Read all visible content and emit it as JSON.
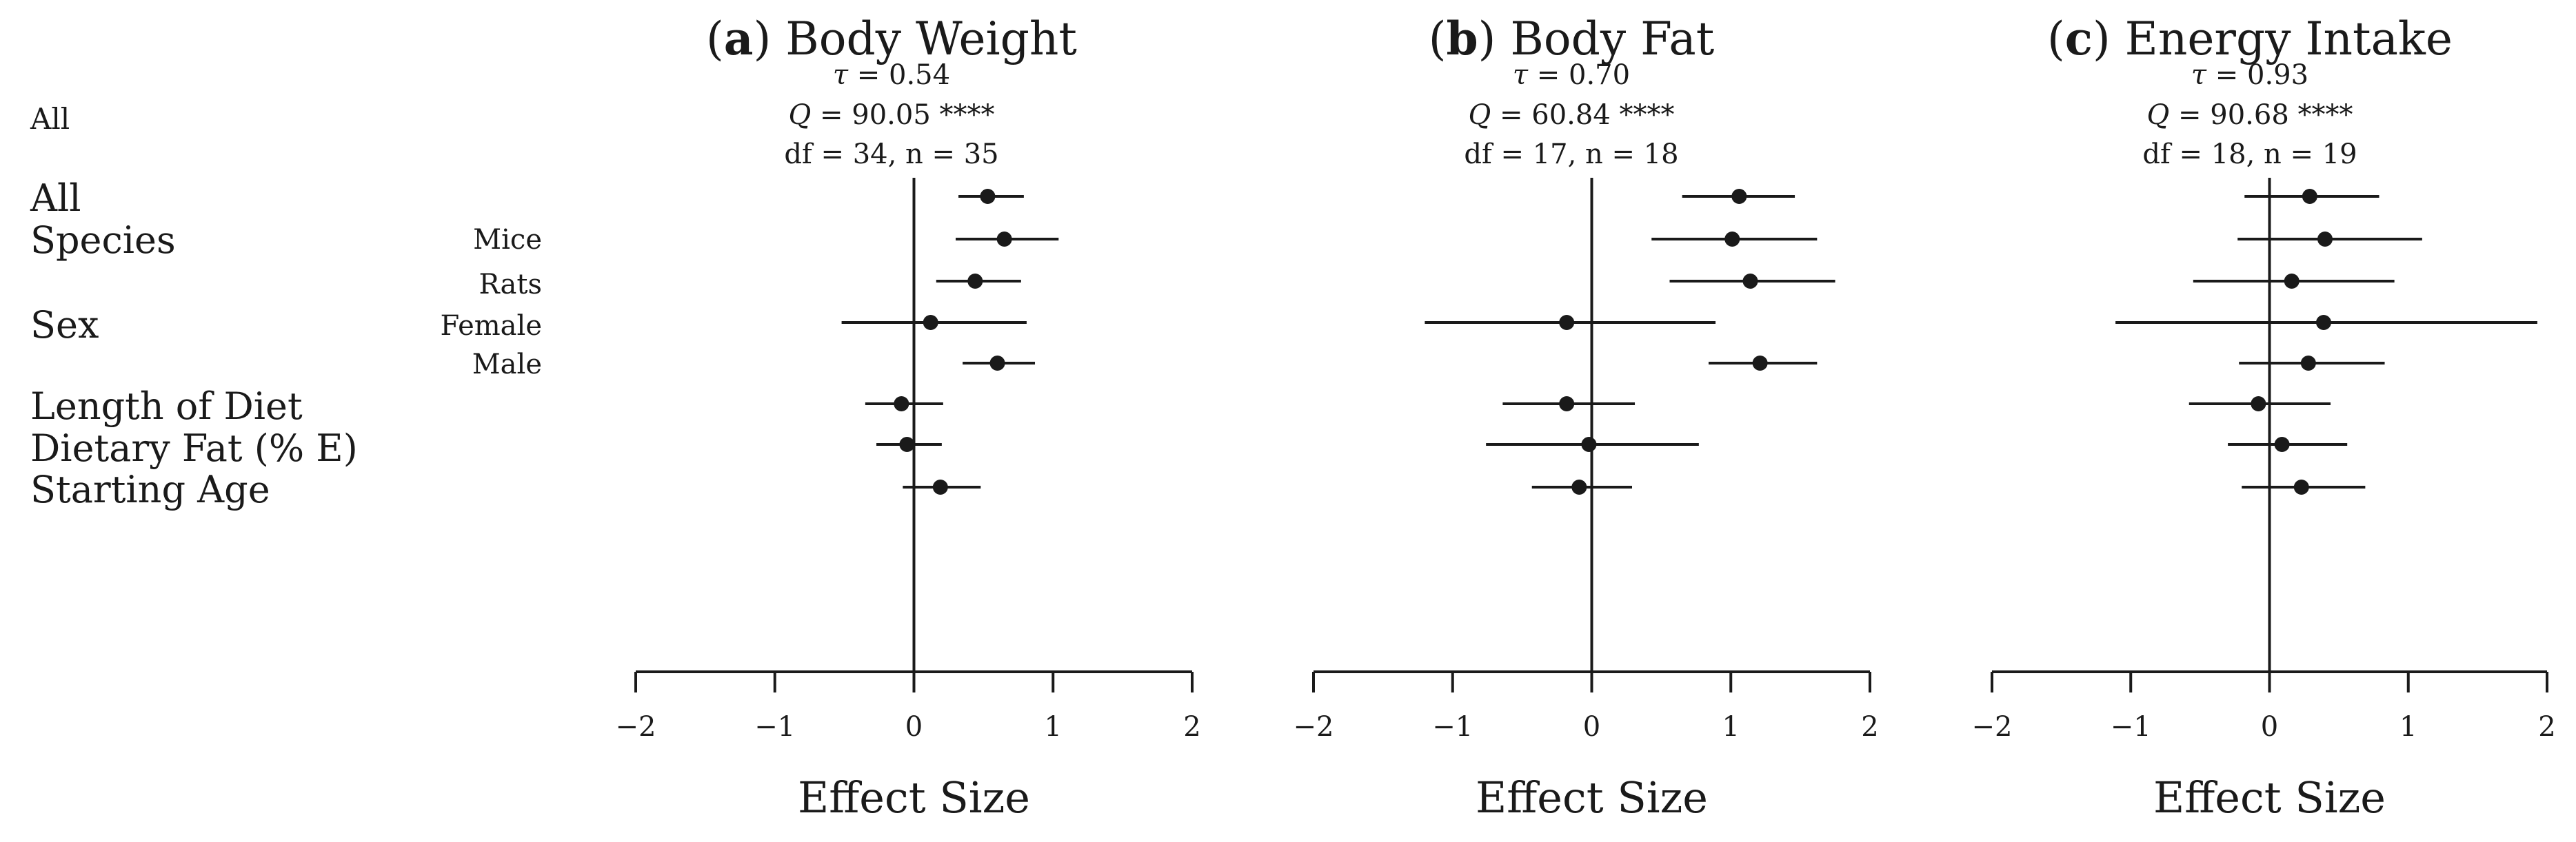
{
  "row_labels": [
    {
      "text": "All",
      "small": true
    },
    {
      "text": "All",
      "small": false
    },
    {
      "text": "Species",
      "small": false
    },
    {
      "text": "Sex",
      "small": false
    },
    {
      "text": "Length of Diet",
      "small": false
    },
    {
      "text": "Dietary Fat (% E)",
      "small": false
    },
    {
      "text": "Starting Age",
      "small": false
    }
  ],
  "sub_labels": [
    "Mice",
    "Rats",
    "Female",
    "Male"
  ],
  "chart_data": [
    {
      "type": "scatter",
      "panel_letter": "a",
      "title": "Body Weight",
      "stats": {
        "tau": "0.54",
        "Q": "90.05",
        "Q_sig": "****",
        "df_n": "df = 34, n = 35"
      },
      "xlabel": "Effect Size",
      "xlim": [
        -2,
        2
      ],
      "xticks": [
        -2,
        -1,
        0,
        1,
        2
      ],
      "tick_labels": [
        "−2",
        "−1",
        "0",
        "1",
        "2"
      ],
      "rows": [
        "All",
        "Mice",
        "Rats",
        "Female",
        "Male",
        "Length of Diet",
        "Dietary Fat (% E)",
        "Starting Age"
      ],
      "estimates": [
        0.53,
        0.65,
        0.44,
        0.12,
        0.6,
        -0.09,
        -0.05,
        0.19
      ],
      "ci_low": [
        0.32,
        0.3,
        0.16,
        -0.52,
        0.35,
        -0.35,
        -0.27,
        -0.08
      ],
      "ci_high": [
        0.79,
        1.04,
        0.77,
        0.81,
        0.87,
        0.21,
        0.2,
        0.48
      ],
      "color": "#1a1a1a"
    },
    {
      "type": "scatter",
      "panel_letter": "b",
      "title": "Body Fat",
      "stats": {
        "tau": "0.70",
        "Q": "60.84",
        "Q_sig": "****",
        "df_n": "df = 17, n = 18"
      },
      "xlabel": "Effect Size",
      "xlim": [
        -2,
        2
      ],
      "xticks": [
        -2,
        -1,
        0,
        1,
        2
      ],
      "tick_labels": [
        "−2",
        "−1",
        "0",
        "1",
        "2"
      ],
      "rows": [
        "All",
        "Mice",
        "Rats",
        "Female",
        "Male",
        "Length of Diet",
        "Dietary Fat (% E)",
        "Starting Age"
      ],
      "estimates": [
        1.06,
        1.01,
        1.14,
        -0.18,
        1.21,
        -0.18,
        -0.02,
        -0.09
      ],
      "ci_low": [
        0.65,
        0.43,
        0.56,
        -1.2,
        0.84,
        -0.64,
        -0.76,
        -0.43
      ],
      "ci_high": [
        1.46,
        1.62,
        1.75,
        0.89,
        1.62,
        0.31,
        0.77,
        0.29
      ],
      "color": "#1a1a1a"
    },
    {
      "type": "scatter",
      "panel_letter": "c",
      "title": "Energy Intake",
      "stats": {
        "tau": "0.93",
        "Q": "90.68",
        "Q_sig": "****",
        "df_n": "df = 18, n = 19"
      },
      "xlabel": "Effect Size",
      "xlim": [
        -2,
        2
      ],
      "xticks": [
        -2,
        -1,
        0,
        1,
        2
      ],
      "tick_labels": [
        "−2",
        "−1",
        "0",
        "1",
        "2"
      ],
      "rows": [
        "All",
        "Mice",
        "Rats",
        "Female",
        "Male",
        "Length of Diet",
        "Dietary Fat (% E)",
        "Starting Age"
      ],
      "estimates": [
        0.29,
        0.4,
        0.16,
        0.39,
        0.28,
        -0.08,
        0.09,
        0.23
      ],
      "ci_low": [
        -0.18,
        -0.23,
        -0.55,
        -1.11,
        -0.22,
        -0.58,
        -0.3,
        -0.2
      ],
      "ci_high": [
        0.79,
        1.1,
        0.9,
        1.93,
        0.83,
        0.44,
        0.56,
        0.69
      ],
      "color": "#1a1a1a"
    }
  ]
}
